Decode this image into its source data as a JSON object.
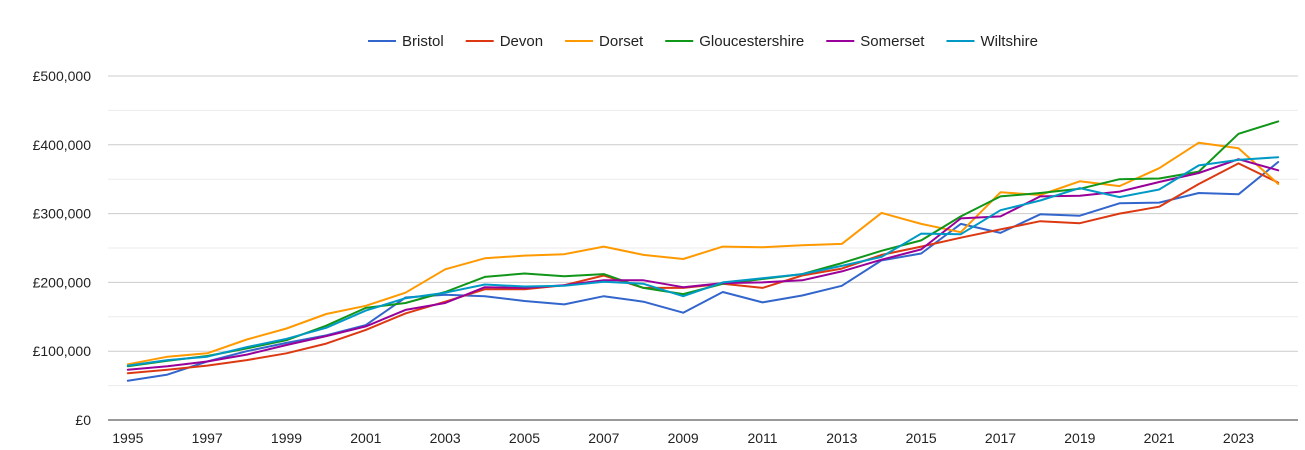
{
  "chart_data": {
    "type": "line",
    "title": "",
    "xlabel": "",
    "ylabel": "",
    "x": [
      1995,
      1996,
      1997,
      1998,
      1999,
      2000,
      2001,
      2002,
      2003,
      2004,
      2005,
      2006,
      2007,
      2008,
      2009,
      2010,
      2011,
      2012,
      2013,
      2014,
      2015,
      2016,
      2017,
      2018,
      2019,
      2020,
      2021,
      2022,
      2023,
      2024
    ],
    "ylim": [
      0,
      500000
    ],
    "xticks": [
      "1995",
      "1997",
      "1999",
      "2001",
      "2003",
      "2005",
      "2007",
      "2009",
      "2011",
      "2013",
      "2015",
      "2017",
      "2019",
      "2021",
      "2023"
    ],
    "yticks": [
      {
        "value": 0,
        "label": "£0"
      },
      {
        "value": 100000,
        "label": "£100,000"
      },
      {
        "value": 200000,
        "label": "£200,000"
      },
      {
        "value": 300000,
        "label": "£300,000"
      },
      {
        "value": 400000,
        "label": "£400,000"
      },
      {
        "value": 500000,
        "label": "£500,000"
      }
    ],
    "grid": true,
    "legend_position": "top",
    "series": [
      {
        "name": "Bristol",
        "color": "#3366cc",
        "values": [
          57000,
          66000,
          85000,
          100000,
          112000,
          123000,
          138000,
          178000,
          182000,
          180000,
          173000,
          168000,
          180000,
          172000,
          156000,
          186000,
          171000,
          181000,
          195000,
          232000,
          242000,
          285000,
          272000,
          299000,
          297000,
          315000,
          316000,
          330000,
          328000,
          375000
        ]
      },
      {
        "name": "Devon",
        "color": "#dc3912",
        "values": [
          68000,
          73000,
          79000,
          87000,
          97000,
          111000,
          131000,
          155000,
          172000,
          190000,
          190000,
          196000,
          210000,
          192000,
          192000,
          198000,
          192000,
          210000,
          220000,
          240000,
          252000,
          265000,
          277000,
          289000,
          286000,
          300000,
          310000,
          343000,
          373000,
          345000
        ]
      },
      {
        "name": "Dorset",
        "color": "#ff9900",
        "values": [
          81000,
          92000,
          97000,
          117000,
          133000,
          154000,
          166000,
          185000,
          219000,
          235000,
          239000,
          241000,
          252000,
          240000,
          234000,
          252000,
          251000,
          254000,
          256000,
          301000,
          285000,
          273000,
          331000,
          327000,
          347000,
          340000,
          366000,
          403000,
          395000,
          343000
        ]
      },
      {
        "name": "Gloucestershire",
        "color": "#109618",
        "values": [
          78000,
          86000,
          93000,
          104000,
          116000,
          137000,
          163000,
          170000,
          186000,
          208000,
          213000,
          209000,
          212000,
          192000,
          183000,
          198000,
          205000,
          212000,
          228000,
          246000,
          261000,
          296000,
          325000,
          330000,
          336000,
          350000,
          351000,
          361000,
          416000,
          434000
        ]
      },
      {
        "name": "Somerset",
        "color": "#990099",
        "values": [
          73000,
          78000,
          85000,
          95000,
          109000,
          122000,
          136000,
          160000,
          170000,
          193000,
          192000,
          196000,
          203000,
          203000,
          193000,
          199000,
          200000,
          203000,
          216000,
          233000,
          248000,
          293000,
          296000,
          325000,
          326000,
          332000,
          346000,
          359000,
          379000,
          363000
        ]
      },
      {
        "name": "Wiltshire",
        "color": "#0099c6",
        "values": [
          79000,
          87000,
          92000,
          106000,
          118000,
          134000,
          159000,
          177000,
          185000,
          197000,
          194000,
          195000,
          201000,
          198000,
          180000,
          200000,
          206000,
          212000,
          224000,
          237000,
          271000,
          270000,
          305000,
          319000,
          337000,
          324000,
          335000,
          370000,
          378000,
          382000
        ]
      }
    ]
  }
}
